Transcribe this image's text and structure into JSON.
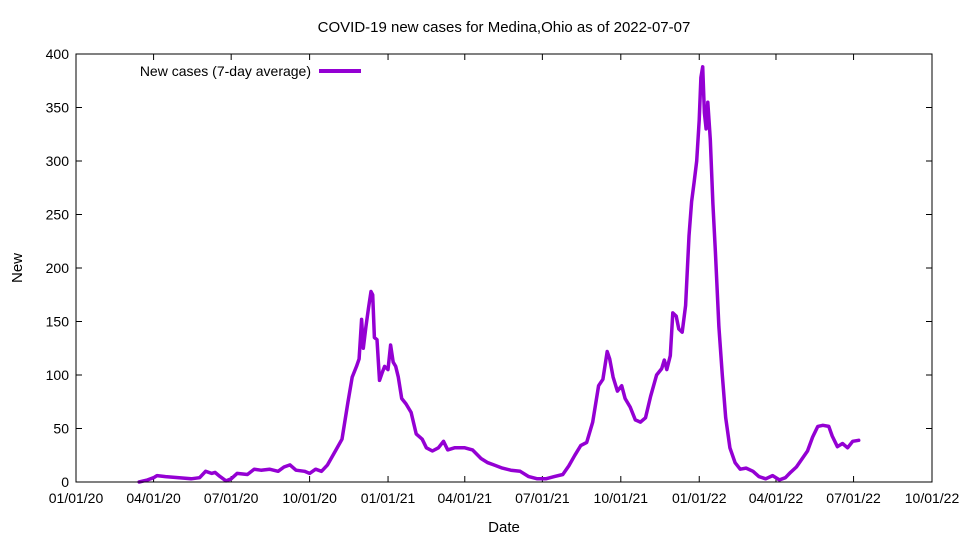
{
  "chart_data": {
    "type": "line",
    "title": "COVID-19 new cases for Medina,Ohio as of 2022-07-07",
    "xlabel": "Date",
    "ylabel": "New",
    "x_axis_type": "date",
    "xlim": [
      "2020-01-01",
      "2022-10-01"
    ],
    "ylim": [
      0,
      400
    ],
    "x_ticks": [
      {
        "date": "2020-01-01",
        "label": "01/01/20"
      },
      {
        "date": "2020-04-01",
        "label": "04/01/20"
      },
      {
        "date": "2020-07-01",
        "label": "07/01/20"
      },
      {
        "date": "2020-10-01",
        "label": "10/01/20"
      },
      {
        "date": "2021-01-01",
        "label": "01/01/21"
      },
      {
        "date": "2021-04-01",
        "label": "04/01/21"
      },
      {
        "date": "2021-07-01",
        "label": "07/01/21"
      },
      {
        "date": "2021-10-01",
        "label": "10/01/21"
      },
      {
        "date": "2022-01-01",
        "label": "01/01/22"
      },
      {
        "date": "2022-04-01",
        "label": "04/01/22"
      },
      {
        "date": "2022-07-01",
        "label": "07/01/22"
      },
      {
        "date": "2022-10-01",
        "label": "10/01/22"
      }
    ],
    "y_ticks": [
      0,
      50,
      100,
      150,
      200,
      250,
      300,
      350,
      400
    ],
    "grid": false,
    "legend": {
      "position": "top-left"
    },
    "series_color": "#9400d3",
    "series": [
      {
        "name": "New cases (7-day average)",
        "points": [
          [
            "2020-03-15",
            0
          ],
          [
            "2020-03-25",
            2
          ],
          [
            "2020-04-01",
            4
          ],
          [
            "2020-04-05",
            6
          ],
          [
            "2020-04-15",
            5
          ],
          [
            "2020-05-01",
            4
          ],
          [
            "2020-05-15",
            3
          ],
          [
            "2020-05-25",
            4
          ],
          [
            "2020-06-01",
            10
          ],
          [
            "2020-06-08",
            8
          ],
          [
            "2020-06-12",
            9
          ],
          [
            "2020-06-18",
            5
          ],
          [
            "2020-06-25",
            1
          ],
          [
            "2020-07-01",
            3
          ],
          [
            "2020-07-08",
            8
          ],
          [
            "2020-07-20",
            7
          ],
          [
            "2020-07-28",
            12
          ],
          [
            "2020-08-05",
            11
          ],
          [
            "2020-08-15",
            12
          ],
          [
            "2020-08-25",
            10
          ],
          [
            "2020-09-01",
            14
          ],
          [
            "2020-09-08",
            16
          ],
          [
            "2020-09-15",
            11
          ],
          [
            "2020-09-25",
            10
          ],
          [
            "2020-10-01",
            8
          ],
          [
            "2020-10-08",
            12
          ],
          [
            "2020-10-15",
            10
          ],
          [
            "2020-10-22",
            16
          ],
          [
            "2020-11-01",
            30
          ],
          [
            "2020-11-08",
            40
          ],
          [
            "2020-11-15",
            75
          ],
          [
            "2020-11-20",
            98
          ],
          [
            "2020-11-25",
            108
          ],
          [
            "2020-11-28",
            115
          ],
          [
            "2020-12-01",
            152
          ],
          [
            "2020-12-03",
            125
          ],
          [
            "2020-12-06",
            145
          ],
          [
            "2020-12-09",
            162
          ],
          [
            "2020-12-12",
            178
          ],
          [
            "2020-12-14",
            175
          ],
          [
            "2020-12-16",
            135
          ],
          [
            "2020-12-19",
            133
          ],
          [
            "2020-12-22",
            95
          ],
          [
            "2020-12-25",
            102
          ],
          [
            "2020-12-28",
            108
          ],
          [
            "2021-01-01",
            105
          ],
          [
            "2021-01-04",
            128
          ],
          [
            "2021-01-07",
            112
          ],
          [
            "2021-01-10",
            108
          ],
          [
            "2021-01-13",
            98
          ],
          [
            "2021-01-17",
            78
          ],
          [
            "2021-01-22",
            73
          ],
          [
            "2021-01-28",
            65
          ],
          [
            "2021-02-03",
            45
          ],
          [
            "2021-02-10",
            40
          ],
          [
            "2021-02-15",
            32
          ],
          [
            "2021-02-22",
            29
          ],
          [
            "2021-03-01",
            32
          ],
          [
            "2021-03-07",
            38
          ],
          [
            "2021-03-12",
            30
          ],
          [
            "2021-03-20",
            32
          ],
          [
            "2021-04-01",
            32
          ],
          [
            "2021-04-10",
            30
          ],
          [
            "2021-04-20",
            22
          ],
          [
            "2021-04-28",
            18
          ],
          [
            "2021-05-05",
            16
          ],
          [
            "2021-05-15",
            13
          ],
          [
            "2021-05-25",
            11
          ],
          [
            "2021-06-05",
            10
          ],
          [
            "2021-06-15",
            5
          ],
          [
            "2021-06-25",
            3
          ],
          [
            "2021-07-05",
            3
          ],
          [
            "2021-07-15",
            5
          ],
          [
            "2021-07-25",
            7
          ],
          [
            "2021-08-01",
            15
          ],
          [
            "2021-08-08",
            25
          ],
          [
            "2021-08-15",
            34
          ],
          [
            "2021-08-22",
            37
          ],
          [
            "2021-08-29",
            56
          ],
          [
            "2021-09-05",
            90
          ],
          [
            "2021-09-10",
            96
          ],
          [
            "2021-09-15",
            122
          ],
          [
            "2021-09-18",
            115
          ],
          [
            "2021-09-22",
            98
          ],
          [
            "2021-09-27",
            85
          ],
          [
            "2021-10-02",
            90
          ],
          [
            "2021-10-06",
            78
          ],
          [
            "2021-10-12",
            70
          ],
          [
            "2021-10-18",
            58
          ],
          [
            "2021-10-24",
            56
          ],
          [
            "2021-10-30",
            60
          ],
          [
            "2021-11-05",
            80
          ],
          [
            "2021-11-12",
            100
          ],
          [
            "2021-11-18",
            106
          ],
          [
            "2021-11-21",
            114
          ],
          [
            "2021-11-24",
            105
          ],
          [
            "2021-11-28",
            118
          ],
          [
            "2021-12-01",
            158
          ],
          [
            "2021-12-05",
            155
          ],
          [
            "2021-12-08",
            143
          ],
          [
            "2021-12-12",
            140
          ],
          [
            "2021-12-16",
            165
          ],
          [
            "2021-12-20",
            230
          ],
          [
            "2021-12-23",
            262
          ],
          [
            "2021-12-26",
            280
          ],
          [
            "2021-12-29",
            300
          ],
          [
            "2022-01-01",
            338
          ],
          [
            "2022-01-03",
            378
          ],
          [
            "2022-01-05",
            388
          ],
          [
            "2022-01-07",
            345
          ],
          [
            "2022-01-09",
            330
          ],
          [
            "2022-01-11",
            355
          ],
          [
            "2022-01-14",
            320
          ],
          [
            "2022-01-17",
            260
          ],
          [
            "2022-01-20",
            215
          ],
          [
            "2022-01-24",
            145
          ],
          [
            "2022-01-28",
            100
          ],
          [
            "2022-02-01",
            60
          ],
          [
            "2022-02-06",
            32
          ],
          [
            "2022-02-12",
            18
          ],
          [
            "2022-02-18",
            12
          ],
          [
            "2022-02-25",
            13
          ],
          [
            "2022-03-05",
            10
          ],
          [
            "2022-03-12",
            5
          ],
          [
            "2022-03-20",
            3
          ],
          [
            "2022-03-28",
            6
          ],
          [
            "2022-04-05",
            2
          ],
          [
            "2022-04-12",
            4
          ],
          [
            "2022-04-18",
            9
          ],
          [
            "2022-04-25",
            14
          ],
          [
            "2022-05-01",
            21
          ],
          [
            "2022-05-08",
            29
          ],
          [
            "2022-05-14",
            42
          ],
          [
            "2022-05-20",
            52
          ],
          [
            "2022-05-26",
            53
          ],
          [
            "2022-06-02",
            52
          ],
          [
            "2022-06-06",
            43
          ],
          [
            "2022-06-12",
            33
          ],
          [
            "2022-06-18",
            36
          ],
          [
            "2022-06-24",
            32
          ],
          [
            "2022-06-30",
            38
          ],
          [
            "2022-07-07",
            39
          ]
        ]
      }
    ]
  }
}
